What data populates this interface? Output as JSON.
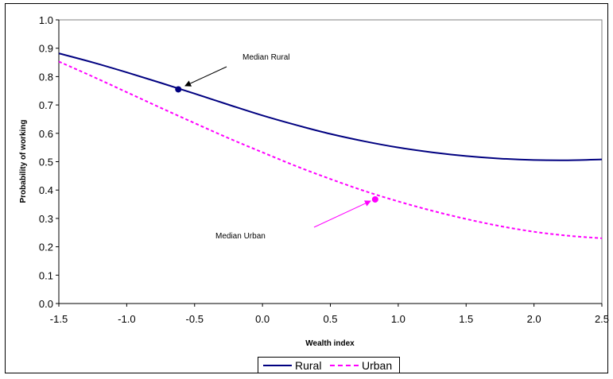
{
  "chart_data": {
    "type": "line",
    "title": "",
    "xlabel": "Wealth index",
    "ylabel": "Probability of working",
    "xlim": [
      -1.5,
      2.5
    ],
    "ylim": [
      0.0,
      1.0
    ],
    "x_ticks": [
      "-1.5",
      "-1.0",
      "-0.5",
      "0.0",
      "0.5",
      "1.0",
      "1.5",
      "2.0",
      "2.5"
    ],
    "y_ticks": [
      "0.0",
      "0.1",
      "0.2",
      "0.3",
      "0.4",
      "0.5",
      "0.6",
      "0.7",
      "0.8",
      "0.9",
      "1.0"
    ],
    "grid": false,
    "legend_position": "bottom",
    "series": [
      {
        "name": "Rural",
        "color": "#000080",
        "style": "solid",
        "x": [
          -1.5,
          -1.25,
          -1.0,
          -0.75,
          -0.5,
          -0.25,
          0.0,
          0.25,
          0.5,
          0.75,
          1.0,
          1.25,
          1.5,
          1.75,
          2.0,
          2.25,
          2.5
        ],
        "y": [
          0.882,
          0.85,
          0.815,
          0.778,
          0.74,
          0.701,
          0.663,
          0.629,
          0.598,
          0.572,
          0.55,
          0.533,
          0.52,
          0.511,
          0.506,
          0.505,
          0.508
        ]
      },
      {
        "name": "Urban",
        "color": "#FF00FF",
        "style": "dashed",
        "x": [
          -1.5,
          -1.25,
          -1.0,
          -0.75,
          -0.5,
          -0.25,
          0.0,
          0.25,
          0.5,
          0.75,
          1.0,
          1.25,
          1.5,
          1.75,
          2.0,
          2.25,
          2.5
        ],
        "y": [
          0.853,
          0.8,
          0.745,
          0.69,
          0.636,
          0.583,
          0.533,
          0.484,
          0.439,
          0.397,
          0.36,
          0.327,
          0.298,
          0.273,
          0.253,
          0.239,
          0.23
        ]
      }
    ],
    "markers": [
      {
        "series": "Rural",
        "x": -0.62,
        "y": 0.755,
        "color": "#000080"
      },
      {
        "series": "Urban",
        "x": 0.83,
        "y": 0.367,
        "color": "#FF00FF"
      }
    ],
    "annotations": [
      {
        "text": "Median Rural",
        "arrow_color": "#000000"
      },
      {
        "text": "Median Urban",
        "arrow_color": "#FF00FF"
      }
    ]
  }
}
